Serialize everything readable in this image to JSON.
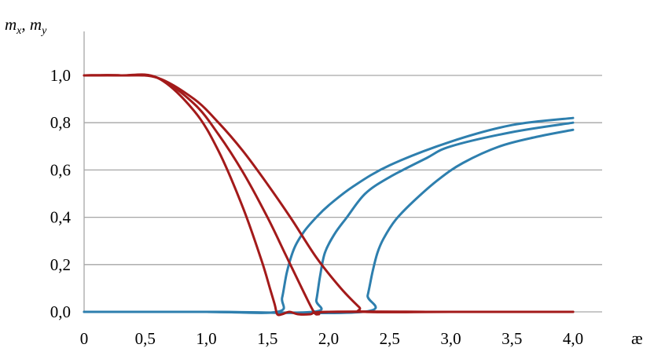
{
  "chart_data": {
    "type": "line",
    "ylabel": {
      "parts": [
        {
          "base": "m",
          "sub": "x"
        },
        {
          "sep": ", "
        },
        {
          "base": "m",
          "sub": "y"
        }
      ]
    },
    "xlabel": "æ",
    "xlim": [
      0,
      4.0
    ],
    "ylim": [
      0,
      1.0
    ],
    "x_ticks": [
      "0",
      "0,5",
      "1,0",
      "1,5",
      "2,0",
      "2,5",
      "3,0",
      "3,5",
      "4,0"
    ],
    "y_ticks": [
      "0,0",
      "0,2",
      "0,4",
      "0,6",
      "0,8",
      "1,0"
    ],
    "grid": "horizontal",
    "colors": {
      "mx": "#a31a1a",
      "my": "#2e7fae",
      "grid": "#a6a6a6"
    },
    "series": [
      {
        "group": "mx",
        "x": [
          0,
          0.3,
          0.6,
          0.9,
          1.1,
          1.3,
          1.45,
          1.52,
          1.56,
          1.58,
          1.62,
          1.68,
          1.75,
          1.85,
          2.0,
          3.0,
          4.0
        ],
        "y": [
          1.0,
          1.0,
          0.99,
          0.85,
          0.68,
          0.44,
          0.22,
          0.1,
          0.03,
          -0.01,
          -0.01,
          0.0,
          -0.01,
          -0.01,
          0.0,
          0.0,
          0.0
        ]
      },
      {
        "group": "mx",
        "x": [
          0,
          0.3,
          0.6,
          0.9,
          1.1,
          1.3,
          1.5,
          1.65,
          1.8,
          1.88,
          1.92,
          2.0,
          3.0,
          4.0
        ],
        "y": [
          1.0,
          1.0,
          0.99,
          0.88,
          0.75,
          0.59,
          0.4,
          0.24,
          0.08,
          0.0,
          -0.01,
          0.0,
          0.0,
          0.0
        ]
      },
      {
        "group": "mx",
        "x": [
          0,
          0.3,
          0.6,
          0.9,
          1.1,
          1.3,
          1.5,
          1.7,
          1.9,
          2.1,
          2.25,
          2.3,
          3.0,
          4.0
        ],
        "y": [
          1.0,
          1.0,
          0.99,
          0.9,
          0.8,
          0.68,
          0.54,
          0.39,
          0.23,
          0.1,
          0.02,
          0.0,
          0.0,
          0.0
        ]
      },
      {
        "group": "my",
        "x": [
          0,
          1.0,
          1.58,
          1.62,
          1.66,
          1.72,
          1.8,
          1.9,
          2.0,
          2.2,
          2.5,
          3.0,
          3.5,
          4.0
        ],
        "y": [
          0.0,
          0.0,
          0.0,
          0.06,
          0.17,
          0.27,
          0.34,
          0.4,
          0.45,
          0.53,
          0.62,
          0.72,
          0.79,
          0.82
        ]
      },
      {
        "group": "my",
        "x": [
          0,
          1.0,
          1.87,
          1.9,
          1.93,
          1.97,
          2.05,
          2.15,
          2.3,
          2.5,
          2.8,
          3.0,
          3.5,
          4.0
        ],
        "y": [
          0.0,
          0.0,
          0.0,
          0.05,
          0.15,
          0.25,
          0.33,
          0.4,
          0.5,
          0.57,
          0.65,
          0.7,
          0.76,
          0.8
        ]
      },
      {
        "group": "my",
        "x": [
          0,
          1.0,
          2.28,
          2.32,
          2.36,
          2.4,
          2.45,
          2.55,
          2.7,
          2.9,
          3.1,
          3.4,
          3.7,
          4.0
        ],
        "y": [
          0.0,
          0.0,
          0.0,
          0.07,
          0.17,
          0.25,
          0.31,
          0.39,
          0.47,
          0.56,
          0.63,
          0.7,
          0.74,
          0.77
        ]
      }
    ]
  }
}
